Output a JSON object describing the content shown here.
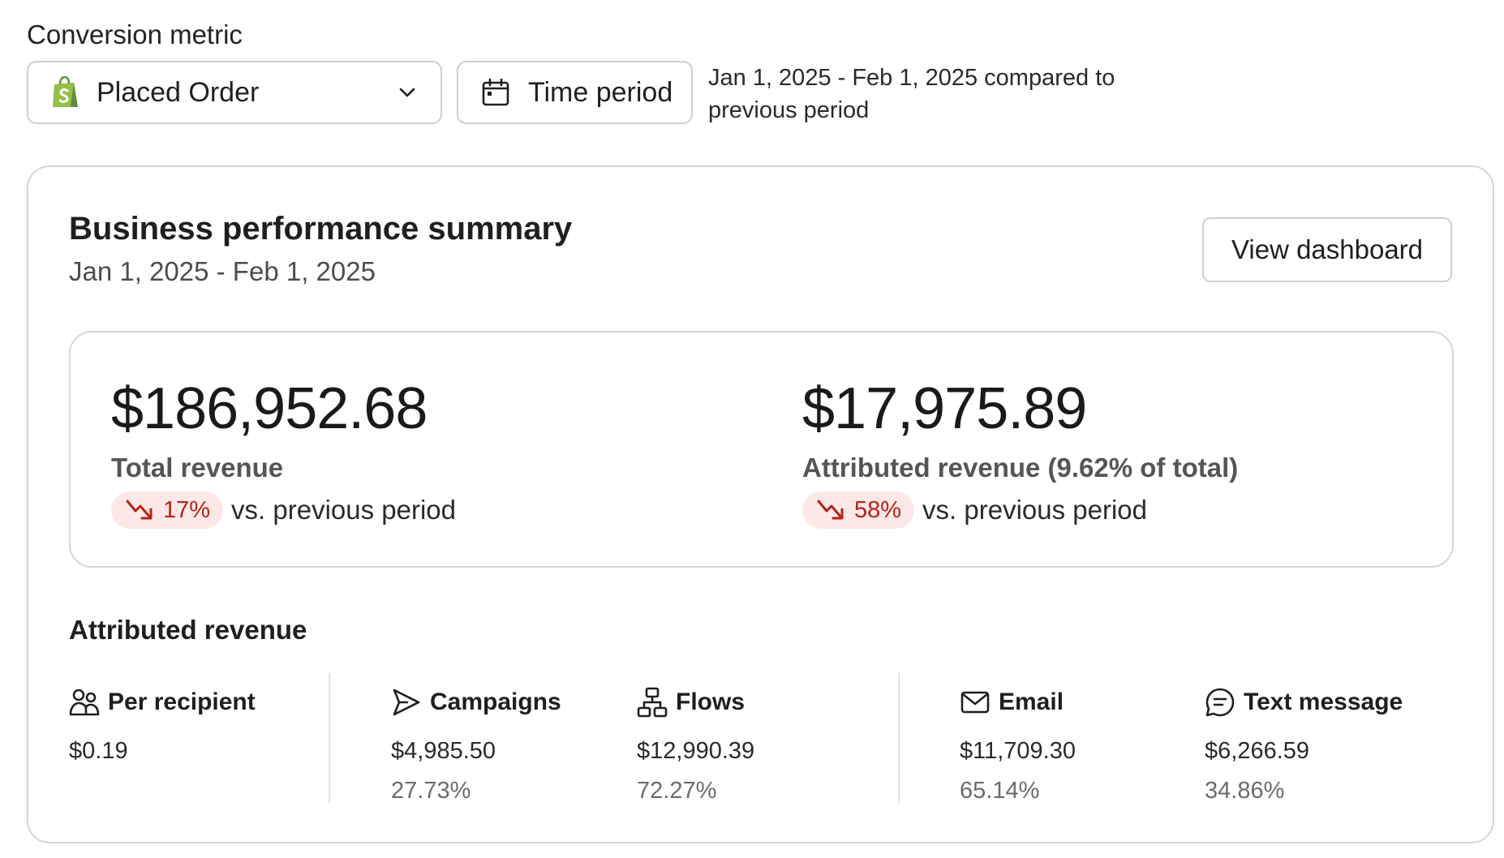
{
  "header": {
    "conversion_label": "Conversion metric",
    "metric_select": {
      "value": "Placed Order",
      "icon": "shopify-bag-icon"
    },
    "time_period_button": {
      "label": "Time period",
      "icon": "calendar-icon"
    },
    "period_description": "Jan 1, 2025 - Feb 1, 2025 compared to previous period"
  },
  "summary": {
    "title": "Business performance summary",
    "date_range": "Jan 1, 2025 - Feb 1, 2025",
    "view_dashboard_label": "View dashboard",
    "total_revenue": {
      "amount": "$186,952.68",
      "label": "Total revenue",
      "change": "17%",
      "change_direction": "down",
      "vs_text": "vs. previous period"
    },
    "attributed_revenue": {
      "amount": "$17,975.89",
      "label": "Attributed revenue (9.62% of total)",
      "change": "58%",
      "change_direction": "down",
      "vs_text": "vs. previous period"
    }
  },
  "attributed": {
    "title": "Attributed revenue",
    "metrics": [
      {
        "icon": "people-icon",
        "label": "Per recipient",
        "value": "$0.19",
        "pct": ""
      },
      {
        "icon": "send-icon",
        "label": "Campaigns",
        "value": "$4,985.50",
        "pct": "27.73%"
      },
      {
        "icon": "flows-icon",
        "label": "Flows",
        "value": "$12,990.39",
        "pct": "72.27%"
      },
      {
        "icon": "envelope-icon",
        "label": "Email",
        "value": "$11,709.30",
        "pct": "65.14%"
      },
      {
        "icon": "chat-icon",
        "label": "Text message",
        "value": "$6,266.59",
        "pct": "34.86%"
      }
    ]
  },
  "colors": {
    "negative_badge_bg": "#fde8e8",
    "negative_badge_text": "#b42318",
    "shopify_green": "#95bf47",
    "border": "#cfcfcf"
  }
}
